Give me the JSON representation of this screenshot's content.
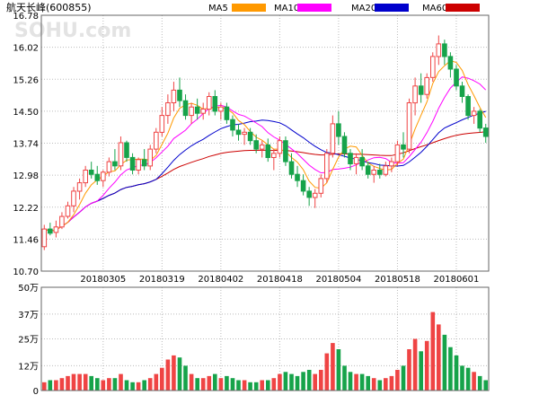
{
  "header": {
    "title": "航天长峰(600855)",
    "ma_labels": [
      {
        "label": "MA5",
        "color": "#ff9900"
      },
      {
        "label": "MA10",
        "color": "#ff00ff"
      },
      {
        "label": "MA20",
        "color": "#0000cc"
      },
      {
        "label": "MA60",
        "color": "#cc0000"
      }
    ]
  },
  "watermark": "SOHU.com",
  "colors": {
    "up": "#ef4444",
    "down": "#16a34a",
    "grid": "#bbbbbb"
  },
  "chart_data": {
    "type": "candlestick",
    "price_axis": {
      "min": 10.7,
      "max": 16.78,
      "ticks": [
        "16.78",
        "16.02",
        "15.26",
        "14.50",
        "13.74",
        "12.98",
        "12.22",
        "11.46",
        "10.70"
      ]
    },
    "volume_axis": {
      "min": 0,
      "max": 50,
      "unit": "万",
      "ticks": [
        "50万",
        "37万",
        "25万",
        "12万",
        "0"
      ],
      "tick_values": [
        50,
        37,
        25,
        12,
        0
      ]
    },
    "x_labels": [
      {
        "label": "20180305",
        "index": 10
      },
      {
        "label": "20180319",
        "index": 20
      },
      {
        "label": "20180402",
        "index": 30
      },
      {
        "label": "20180418",
        "index": 40
      },
      {
        "label": "20180504",
        "index": 50
      },
      {
        "label": "20180518",
        "index": 60
      },
      {
        "label": "20180601",
        "index": 70
      }
    ],
    "candles": [
      [
        11.28,
        11.8,
        11.2,
        11.7,
        4
      ],
      [
        11.7,
        11.85,
        11.55,
        11.6,
        5
      ],
      [
        11.62,
        11.9,
        11.5,
        11.75,
        5
      ],
      [
        11.75,
        12.1,
        11.7,
        12.0,
        6
      ],
      [
        12.0,
        12.35,
        11.95,
        12.25,
        7
      ],
      [
        12.25,
        12.7,
        12.1,
        12.6,
        8
      ],
      [
        12.6,
        12.9,
        12.4,
        12.8,
        8
      ],
      [
        12.8,
        13.2,
        12.7,
        13.1,
        8
      ],
      [
        13.1,
        13.3,
        12.9,
        13.0,
        7
      ],
      [
        13.0,
        13.2,
        12.75,
        12.85,
        6
      ],
      [
        12.85,
        13.1,
        12.7,
        13.05,
        5
      ],
      [
        13.05,
        13.4,
        12.95,
        13.3,
        6
      ],
      [
        13.3,
        13.6,
        13.1,
        13.2,
        6
      ],
      [
        13.2,
        13.9,
        13.1,
        13.75,
        8
      ],
      [
        13.75,
        13.8,
        13.3,
        13.4,
        5
      ],
      [
        13.4,
        13.5,
        13.0,
        13.1,
        4
      ],
      [
        13.1,
        13.4,
        13.0,
        13.35,
        4
      ],
      [
        13.35,
        13.6,
        13.1,
        13.2,
        5
      ],
      [
        13.2,
        13.7,
        13.1,
        13.6,
        6
      ],
      [
        13.6,
        14.1,
        13.5,
        14.0,
        8
      ],
      [
        14.0,
        14.6,
        13.9,
        14.4,
        11
      ],
      [
        14.4,
        14.9,
        14.2,
        14.7,
        15
      ],
      [
        14.7,
        15.2,
        14.5,
        15.0,
        17
      ],
      [
        15.0,
        15.3,
        14.6,
        14.75,
        16
      ],
      [
        14.75,
        14.9,
        14.3,
        14.4,
        12
      ],
      [
        14.4,
        14.7,
        14.2,
        14.6,
        8
      ],
      [
        14.6,
        14.8,
        14.3,
        14.45,
        6
      ],
      [
        14.45,
        14.7,
        14.3,
        14.55,
        6
      ],
      [
        14.55,
        14.95,
        14.4,
        14.85,
        7
      ],
      [
        14.85,
        15.0,
        14.4,
        14.5,
        8
      ],
      [
        14.5,
        14.7,
        14.3,
        14.6,
        6
      ],
      [
        14.6,
        14.7,
        14.2,
        14.3,
        7
      ],
      [
        14.3,
        14.4,
        13.9,
        14.05,
        6
      ],
      [
        14.05,
        14.2,
        13.8,
        13.95,
        5
      ],
      [
        13.95,
        14.1,
        13.7,
        14.0,
        5
      ],
      [
        14.0,
        14.1,
        13.7,
        13.8,
        4
      ],
      [
        13.8,
        13.95,
        13.5,
        13.6,
        4
      ],
      [
        13.6,
        13.8,
        13.4,
        13.7,
        5
      ],
      [
        13.7,
        13.85,
        13.3,
        13.4,
        5
      ],
      [
        13.4,
        13.6,
        13.1,
        13.5,
        6
      ],
      [
        13.5,
        13.9,
        13.4,
        13.8,
        8
      ],
      [
        13.8,
        13.9,
        13.2,
        13.3,
        9
      ],
      [
        13.3,
        13.5,
        12.9,
        13.0,
        8
      ],
      [
        13.0,
        13.2,
        12.7,
        12.85,
        7
      ],
      [
        12.85,
        13.0,
        12.5,
        12.6,
        9
      ],
      [
        12.6,
        12.7,
        12.25,
        12.45,
        10
      ],
      [
        12.45,
        12.65,
        12.2,
        12.55,
        8
      ],
      [
        12.55,
        13.0,
        12.45,
        12.9,
        10
      ],
      [
        12.9,
        13.6,
        12.8,
        13.5,
        18
      ],
      [
        13.5,
        14.4,
        13.4,
        14.2,
        23
      ],
      [
        14.2,
        14.5,
        13.7,
        13.9,
        20
      ],
      [
        13.9,
        14.0,
        13.4,
        13.5,
        12
      ],
      [
        13.5,
        13.6,
        13.1,
        13.25,
        9
      ],
      [
        13.25,
        13.5,
        13.0,
        13.4,
        8
      ],
      [
        13.4,
        13.6,
        13.1,
        13.2,
        8
      ],
      [
        13.2,
        13.3,
        12.9,
        13.0,
        7
      ],
      [
        13.0,
        13.2,
        12.8,
        13.1,
        6
      ],
      [
        13.1,
        13.25,
        12.9,
        13.0,
        5
      ],
      [
        13.0,
        13.3,
        12.95,
        13.2,
        6
      ],
      [
        13.2,
        13.4,
        13.05,
        13.3,
        7
      ],
      [
        13.3,
        13.8,
        13.2,
        13.7,
        10
      ],
      [
        13.7,
        14.0,
        13.4,
        13.6,
        12
      ],
      [
        13.6,
        14.8,
        13.5,
        14.7,
        20
      ],
      [
        14.7,
        15.3,
        14.4,
        15.1,
        25
      ],
      [
        15.1,
        15.4,
        14.7,
        14.9,
        19
      ],
      [
        14.9,
        15.4,
        14.8,
        15.3,
        24
      ],
      [
        15.3,
        15.9,
        15.2,
        15.8,
        38
      ],
      [
        15.8,
        16.3,
        15.6,
        16.1,
        32
      ],
      [
        16.1,
        16.2,
        15.6,
        15.8,
        27
      ],
      [
        15.8,
        15.9,
        15.3,
        15.5,
        21
      ],
      [
        15.5,
        15.6,
        15.0,
        15.1,
        17
      ],
      [
        15.1,
        15.2,
        14.7,
        14.85,
        12
      ],
      [
        14.85,
        14.9,
        14.3,
        14.4,
        11
      ],
      [
        14.4,
        14.6,
        14.2,
        14.5,
        9
      ],
      [
        14.5,
        14.55,
        14.0,
        14.1,
        7
      ],
      [
        14.1,
        14.2,
        13.75,
        13.9,
        5
      ]
    ]
  }
}
